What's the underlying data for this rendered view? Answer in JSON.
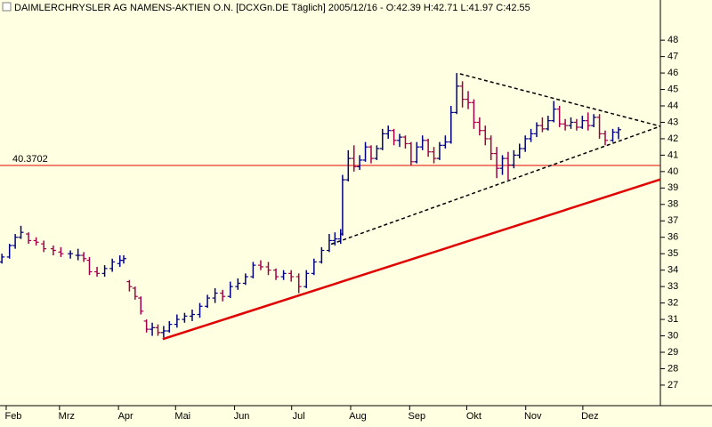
{
  "chart_data": {
    "type": "ohlc",
    "title": "DAIMLERCHRYSLER AG NAMENS-AKTIEN O.N. [DCXGn.DE  Täglich] 2005/12/16 - O:42.39 H:42.71 L:41.97 C:42.55",
    "x": [
      26,
      30,
      33,
      36,
      40,
      44,
      48,
      53,
      57,
      62,
      66,
      69,
      72,
      76,
      80,
      84,
      88,
      90,
      93,
      96,
      99,
      102,
      105,
      108,
      111,
      114,
      118,
      122,
      126,
      130,
      134,
      138,
      142,
      146,
      150,
      154,
      158,
      162,
      166,
      170,
      174,
      178,
      182,
      186,
      190,
      194,
      198,
      201,
      204,
      205,
      208,
      211,
      214,
      217,
      220,
      223,
      226,
      229,
      232,
      235,
      238,
      241,
      244,
      247,
      250,
      253,
      256,
      259,
      262,
      265,
      268,
      271,
      274,
      277,
      280,
      283,
      286,
      289,
      292,
      295,
      298,
      301,
      304,
      307,
      310,
      313,
      316,
      319,
      322,
      325,
      328,
      331,
      334,
      337,
      340,
      343,
      347,
      350
    ],
    "open": [
      34.5,
      34.8,
      35.5,
      36.0,
      36.2,
      35.8,
      35.6,
      35.3,
      35.1,
      35.0,
      34.9,
      34.9,
      34.6,
      33.9,
      33.8,
      34.1,
      34.4,
      34.6,
      33.3,
      32.9,
      32.3,
      30.9,
      30.4,
      30.5,
      30.2,
      30.3,
      30.7,
      31.0,
      31.2,
      31.3,
      31.8,
      32.3,
      32.6,
      32.4,
      33.0,
      33.2,
      33.6,
      34.3,
      34.2,
      34.0,
      33.6,
      33.8,
      33.6,
      33.0,
      33.8,
      34.5,
      35.2,
      35.8,
      35.9,
      36.2,
      39.5,
      40.8,
      40.3,
      40.7,
      41.5,
      40.8,
      41.4,
      42.3,
      42.5,
      41.9,
      42.1,
      41.7,
      40.6,
      41.5,
      41.9,
      41.2,
      40.8,
      41.6,
      41.8,
      43.6,
      45.2,
      44.4,
      44.2,
      43.0,
      42.5,
      42.0,
      41.1,
      40.2,
      40.8,
      40.4,
      41.0,
      41.4,
      42.0,
      42.3,
      42.8,
      42.6,
      43.1,
      43.8,
      42.9,
      42.8,
      43.0,
      42.7,
      43.1,
      42.8,
      43.3,
      42.3,
      41.9,
      42.39
    ],
    "high": [
      35.0,
      35.6,
      36.2,
      36.7,
      36.3,
      36.0,
      35.8,
      35.5,
      35.4,
      35.2,
      35.3,
      35.1,
      34.8,
      34.2,
      34.3,
      34.7,
      34.9,
      34.9,
      33.4,
      33.0,
      32.4,
      31.0,
      30.8,
      30.7,
      30.6,
      30.9,
      31.3,
      31.4,
      31.6,
      32.0,
      32.5,
      32.9,
      32.8,
      33.3,
      33.5,
      33.8,
      34.5,
      34.6,
      34.5,
      34.1,
      34.0,
      34.0,
      33.8,
      34.0,
      34.7,
      35.4,
      36.2,
      36.3,
      36.5,
      39.8,
      41.3,
      41.6,
      41.0,
      41.8,
      41.6,
      41.6,
      42.6,
      42.8,
      42.6,
      42.3,
      42.2,
      41.8,
      41.8,
      42.2,
      42.0,
      41.5,
      41.8,
      42.2,
      44.0,
      46.0,
      45.5,
      44.9,
      44.4,
      43.3,
      42.8,
      42.2,
      41.5,
      41.0,
      41.2,
      41.3,
      41.7,
      42.2,
      42.6,
      43.0,
      43.3,
      43.4,
      44.3,
      44.0,
      43.2,
      43.3,
      43.2,
      43.4,
      43.6,
      43.5,
      43.5,
      42.5,
      42.6,
      42.71
    ],
    "low": [
      34.4,
      34.7,
      35.3,
      35.9,
      35.6,
      35.5,
      35.1,
      34.9,
      34.8,
      34.7,
      34.6,
      34.5,
      33.7,
      33.6,
      33.6,
      33.9,
      34.2,
      34.4,
      32.7,
      32.2,
      31.3,
      30.2,
      30.0,
      30.0,
      29.9,
      30.2,
      30.5,
      30.8,
      30.9,
      31.1,
      31.7,
      32.0,
      32.1,
      32.3,
      32.8,
      33.1,
      33.5,
      34.0,
      33.7,
      33.4,
      33.4,
      33.3,
      32.6,
      32.9,
      33.7,
      34.4,
      35.1,
      35.5,
      35.6,
      36.1,
      39.4,
      40.0,
      40.1,
      40.6,
      40.5,
      40.7,
      41.3,
      42.0,
      41.6,
      41.5,
      41.4,
      40.4,
      40.5,
      41.3,
      40.9,
      40.5,
      40.7,
      41.4,
      41.7,
      43.5,
      43.9,
      43.8,
      42.6,
      42.2,
      41.6,
      40.7,
      39.6,
      39.8,
      39.5,
      40.2,
      40.8,
      41.2,
      41.8,
      42.1,
      42.4,
      42.5,
      43.0,
      42.7,
      42.5,
      42.6,
      42.5,
      42.6,
      42.5,
      42.7,
      42.0,
      41.6,
      41.8,
      41.97
    ],
    "close": [
      34.8,
      35.5,
      36.0,
      36.3,
      35.8,
      35.7,
      35.3,
      35.2,
      35.0,
      35.0,
      34.9,
      34.7,
      33.9,
      33.8,
      34.1,
      34.5,
      34.6,
      34.7,
      33.0,
      32.4,
      31.5,
      30.4,
      30.5,
      30.2,
      30.3,
      30.7,
      31.0,
      31.2,
      31.3,
      31.8,
      32.3,
      32.6,
      32.4,
      33.0,
      33.2,
      33.6,
      34.3,
      34.2,
      34.0,
      33.6,
      33.8,
      33.6,
      33.0,
      33.8,
      34.5,
      35.2,
      35.8,
      35.9,
      36.2,
      39.5,
      40.8,
      40.3,
      40.7,
      41.5,
      40.8,
      41.4,
      42.3,
      42.5,
      41.9,
      42.1,
      41.7,
      40.6,
      41.5,
      41.9,
      41.2,
      40.8,
      41.6,
      41.8,
      43.6,
      45.2,
      44.4,
      44.2,
      43.0,
      42.5,
      42.0,
      41.1,
      40.2,
      40.8,
      40.4,
      41.0,
      41.4,
      42.0,
      42.3,
      42.8,
      42.6,
      43.1,
      43.8,
      42.9,
      42.8,
      43.0,
      42.7,
      43.1,
      42.8,
      43.3,
      42.3,
      41.9,
      42.4,
      42.55
    ],
    "up_color": "#000080",
    "down_color": "#a0004a",
    "xlim": [
      25,
      372
    ],
    "xticks": [
      {
        "value": 32,
        "label": "Feb"
      },
      {
        "value": 60,
        "label": "Mrz"
      },
      {
        "value": 91,
        "label": "Apr"
      },
      {
        "value": 121,
        "label": "Mai"
      },
      {
        "value": 152,
        "label": "Jun"
      },
      {
        "value": 182,
        "label": "Jul"
      },
      {
        "value": 213,
        "label": "Aug"
      },
      {
        "value": 244,
        "label": "Sep"
      },
      {
        "value": 274,
        "label": "Okt"
      },
      {
        "value": 305,
        "label": "Nov"
      },
      {
        "value": 335,
        "label": "Dez"
      }
    ],
    "ylim": [
      26.4,
      49.2
    ],
    "yticks": [
      27,
      28,
      29,
      30,
      31,
      32,
      33,
      34,
      35,
      36,
      37,
      38,
      39,
      40,
      41,
      42,
      43,
      44,
      45,
      46,
      47,
      48
    ],
    "hlines": [
      {
        "value": 40.3702,
        "color": "#e00000"
      }
    ],
    "trendlines": [
      {
        "x": [
          110.5,
          372
        ],
        "y": [
          29.8,
          39.52
        ],
        "color": "#e00000",
        "style": "solid"
      },
      {
        "x": [
          266.7,
          372
        ],
        "y": [
          45.95,
          42.76
        ],
        "color": "#000000",
        "style": "dashed"
      },
      {
        "x": [
          199,
          372
        ],
        "y": [
          35.58,
          42.76
        ],
        "color": "#000000",
        "style": "dashed"
      }
    ]
  }
}
